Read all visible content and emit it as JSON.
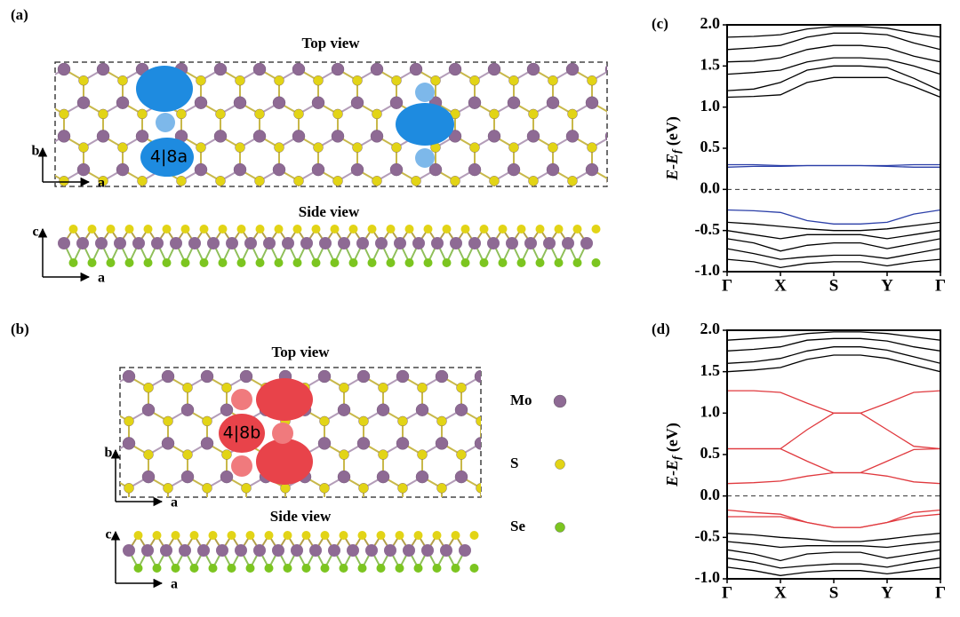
{
  "structures": [
    {
      "panel_label": "(a)",
      "top_title": "Top view",
      "side_title": "Side view",
      "defect_label": "4|8a",
      "top_axes": [
        "b",
        "a"
      ],
      "side_axes": [
        "c",
        "a"
      ]
    },
    {
      "panel_label": "(b)",
      "top_title": "Top view",
      "side_title": "Side view",
      "defect_label": "4|8b",
      "top_axes": [
        "b",
        "a"
      ],
      "side_axes": [
        "c",
        "a"
      ],
      "legend": [
        {
          "label": "Mo",
          "color": "#8e6a94"
        },
        {
          "label": "S",
          "color": "#e2d416"
        },
        {
          "label": "Se",
          "color": "#7cc520"
        }
      ]
    }
  ],
  "chart_data": [
    {
      "type": "line",
      "panel_label": "(c)",
      "ylabel": {
        "main": "E-E",
        "sub": "f",
        "unit": " (eV)"
      },
      "x": [
        0,
        0.5,
        1,
        1.5,
        2,
        2.5,
        3,
        3.5,
        4
      ],
      "xlim": [
        0,
        4
      ],
      "xticks": [
        {
          "value": 0,
          "label": "Γ"
        },
        {
          "value": 1,
          "label": "X"
        },
        {
          "value": 2,
          "label": "S"
        },
        {
          "value": 3,
          "label": "Y"
        },
        {
          "value": 4,
          "label": "Γ"
        }
      ],
      "ylim": [
        -1,
        2
      ],
      "yticks": [
        {
          "value": 2,
          "label": "2.0"
        },
        {
          "value": 1.5,
          "label": "1.5"
        },
        {
          "value": 1,
          "label": "1.0"
        },
        {
          "value": 0.5,
          "label": "0.5"
        },
        {
          "value": 0,
          "label": "0.0"
        },
        {
          "value": -0.5,
          "label": "-0.5"
        },
        {
          "value": -1,
          "label": "-1.0"
        }
      ],
      "hline": 0,
      "series": [
        {
          "color": "#000000",
          "values": [
            1.12,
            1.13,
            1.15,
            1.3,
            1.36,
            1.36,
            1.36,
            1.25,
            1.12
          ]
        },
        {
          "color": "#000000",
          "values": [
            1.2,
            1.22,
            1.3,
            1.45,
            1.5,
            1.5,
            1.48,
            1.35,
            1.2
          ]
        },
        {
          "color": "#000000",
          "values": [
            1.4,
            1.42,
            1.45,
            1.55,
            1.6,
            1.6,
            1.58,
            1.5,
            1.4
          ]
        },
        {
          "color": "#000000",
          "values": [
            1.55,
            1.56,
            1.6,
            1.7,
            1.75,
            1.75,
            1.72,
            1.62,
            1.55
          ]
        },
        {
          "color": "#000000",
          "values": [
            1.7,
            1.72,
            1.75,
            1.85,
            1.9,
            1.9,
            1.88,
            1.78,
            1.7
          ]
        },
        {
          "color": "#000000",
          "values": [
            1.85,
            1.86,
            1.88,
            1.95,
            1.98,
            1.98,
            1.96,
            1.9,
            1.85
          ]
        },
        {
          "color": "#000000",
          "values": [
            -0.4,
            -0.42,
            -0.45,
            -0.48,
            -0.5,
            -0.5,
            -0.48,
            -0.44,
            -0.4
          ]
        },
        {
          "color": "#000000",
          "values": [
            -0.5,
            -0.55,
            -0.6,
            -0.55,
            -0.55,
            -0.55,
            -0.6,
            -0.55,
            -0.5
          ]
        },
        {
          "color": "#000000",
          "values": [
            -0.6,
            -0.65,
            -0.75,
            -0.68,
            -0.65,
            -0.65,
            -0.72,
            -0.66,
            -0.6
          ]
        },
        {
          "color": "#000000",
          "values": [
            -0.72,
            -0.78,
            -0.85,
            -0.82,
            -0.8,
            -0.8,
            -0.84,
            -0.78,
            -0.72
          ]
        },
        {
          "color": "#000000",
          "values": [
            -0.85,
            -0.88,
            -0.95,
            -0.9,
            -0.88,
            -0.88,
            -0.93,
            -0.88,
            -0.85
          ]
        },
        {
          "color": "#2b3fa8",
          "values": [
            0.3,
            0.3,
            0.29,
            0.29,
            0.29,
            0.29,
            0.29,
            0.3,
            0.3
          ]
        },
        {
          "color": "#2b3fa8",
          "values": [
            0.27,
            0.28,
            0.28,
            0.29,
            0.29,
            0.29,
            0.28,
            0.27,
            0.27
          ]
        },
        {
          "color": "#2b3fa8",
          "values": [
            -0.25,
            -0.26,
            -0.28,
            -0.38,
            -0.42,
            -0.42,
            -0.4,
            -0.3,
            -0.25
          ]
        }
      ]
    },
    {
      "type": "line",
      "panel_label": "(d)",
      "ylabel": {
        "main": "E-E",
        "sub": "f",
        "unit": " (eV)"
      },
      "x": [
        0,
        0.5,
        1,
        1.5,
        2,
        2.5,
        3,
        3.5,
        4
      ],
      "xlim": [
        0,
        4
      ],
      "xticks": [
        {
          "value": 0,
          "label": "Γ"
        },
        {
          "value": 1,
          "label": "X"
        },
        {
          "value": 2,
          "label": "S"
        },
        {
          "value": 3,
          "label": "Y"
        },
        {
          "value": 4,
          "label": "Γ"
        }
      ],
      "ylim": [
        -1,
        2
      ],
      "yticks": [
        {
          "value": 2,
          "label": "2.0"
        },
        {
          "value": 1.5,
          "label": "1.5"
        },
        {
          "value": 1,
          "label": "1.0"
        },
        {
          "value": 0.5,
          "label": "0.5"
        },
        {
          "value": 0,
          "label": "0.0"
        },
        {
          "value": -0.5,
          "label": "-0.5"
        },
        {
          "value": -1,
          "label": "-1.0"
        }
      ],
      "hline": 0,
      "series": [
        {
          "color": "#000000",
          "values": [
            1.5,
            1.52,
            1.55,
            1.65,
            1.7,
            1.7,
            1.66,
            1.58,
            1.5
          ]
        },
        {
          "color": "#000000",
          "values": [
            1.6,
            1.62,
            1.66,
            1.75,
            1.8,
            1.8,
            1.76,
            1.68,
            1.6
          ]
        },
        {
          "color": "#000000",
          "values": [
            1.75,
            1.77,
            1.8,
            1.88,
            1.9,
            1.9,
            1.87,
            1.8,
            1.75
          ]
        },
        {
          "color": "#000000",
          "values": [
            1.88,
            1.9,
            1.92,
            1.96,
            1.98,
            1.98,
            1.96,
            1.92,
            1.88
          ]
        },
        {
          "color": "#000000",
          "values": [
            -0.45,
            -0.47,
            -0.5,
            -0.52,
            -0.55,
            -0.55,
            -0.52,
            -0.48,
            -0.45
          ]
        },
        {
          "color": "#000000",
          "values": [
            -0.55,
            -0.58,
            -0.62,
            -0.6,
            -0.6,
            -0.6,
            -0.62,
            -0.58,
            -0.55
          ]
        },
        {
          "color": "#000000",
          "values": [
            -0.65,
            -0.7,
            -0.78,
            -0.7,
            -0.68,
            -0.68,
            -0.75,
            -0.7,
            -0.65
          ]
        },
        {
          "color": "#000000",
          "values": [
            -0.75,
            -0.8,
            -0.87,
            -0.84,
            -0.82,
            -0.82,
            -0.86,
            -0.8,
            -0.75
          ]
        },
        {
          "color": "#000000",
          "values": [
            -0.86,
            -0.9,
            -0.96,
            -0.92,
            -0.9,
            -0.9,
            -0.94,
            -0.9,
            -0.86
          ]
        },
        {
          "color": "#e0393e",
          "values": [
            1.27,
            1.27,
            1.25,
            1.12,
            1.0,
            1.0,
            1.12,
            1.25,
            1.27
          ]
        },
        {
          "color": "#e0393e",
          "values": [
            0.57,
            0.57,
            0.57,
            0.8,
            1.0,
            1.0,
            0.8,
            0.6,
            0.57
          ]
        },
        {
          "color": "#e0393e",
          "values": [
            0.57,
            0.57,
            0.57,
            0.42,
            0.28,
            0.28,
            0.42,
            0.56,
            0.57
          ]
        },
        {
          "color": "#e0393e",
          "values": [
            0.15,
            0.16,
            0.18,
            0.24,
            0.28,
            0.28,
            0.24,
            0.17,
            0.15
          ]
        },
        {
          "color": "#e0393e",
          "values": [
            -0.17,
            -0.2,
            -0.22,
            -0.32,
            -0.38,
            -0.38,
            -0.32,
            -0.2,
            -0.17
          ]
        },
        {
          "color": "#e0393e",
          "values": [
            -0.25,
            -0.25,
            -0.25,
            -0.32,
            -0.38,
            -0.38,
            -0.32,
            -0.25,
            -0.22
          ]
        }
      ]
    }
  ]
}
